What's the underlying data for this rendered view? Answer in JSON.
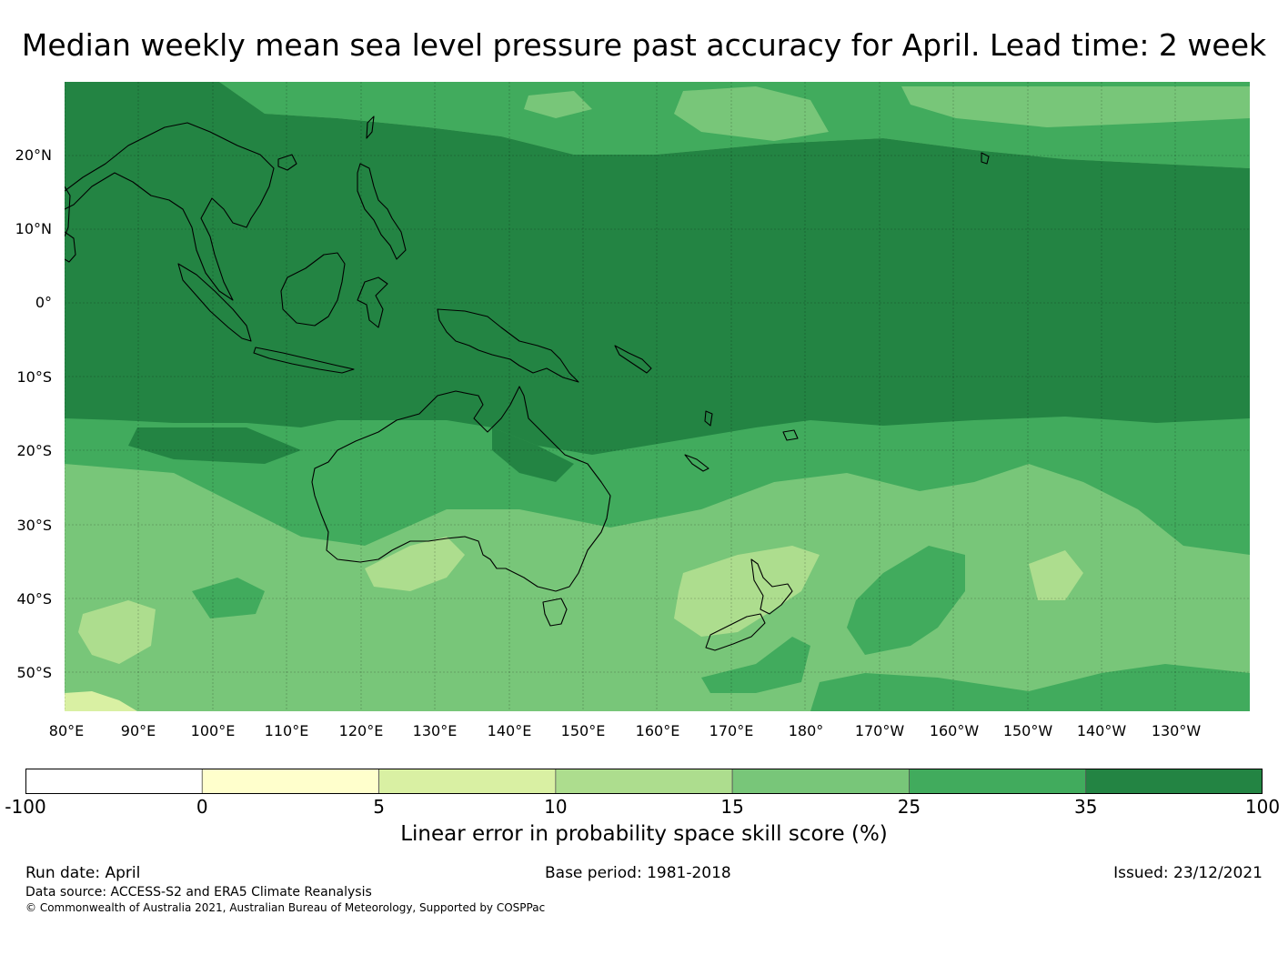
{
  "title": "Median weekly mean sea level pressure past accuracy for April. Lead time: 2 week",
  "map": {
    "lat_labels": [
      "20°N",
      "10°N",
      "0°",
      "10°S",
      "20°S",
      "30°S",
      "40°S",
      "50°S"
    ],
    "lon_labels": [
      "80°E",
      "90°E",
      "100°E",
      "110°E",
      "120°E",
      "130°E",
      "140°E",
      "150°E",
      "160°E",
      "170°E",
      "180°",
      "170°W",
      "160°W",
      "150°W",
      "140°W",
      "130°W"
    ],
    "skill_zones": [
      {
        "region": "tropical band 15°N to 15°S",
        "class": "35-100"
      },
      {
        "region": "subtropics and northern margin",
        "class": "25-35"
      },
      {
        "region": "southern mid-latitudes",
        "class": "15-25"
      },
      {
        "region": "Tasman Sea / South Island of New Zealand",
        "class": "10-15"
      },
      {
        "region": "southern Australia and Great Australian Bight",
        "class": "10-15"
      }
    ],
    "coastlines": [
      "Australia",
      "New Zealand",
      "Indonesia",
      "Papua New Guinea",
      "Philippines",
      "Southeast Asia",
      "Pacific islands"
    ]
  },
  "colorbar": {
    "classes": [
      {
        "from": -100,
        "to": 0,
        "color": "#ffffff"
      },
      {
        "from": 0,
        "to": 5,
        "color": "#ffffcc"
      },
      {
        "from": 5,
        "to": 10,
        "color": "#d9f0a3"
      },
      {
        "from": 10,
        "to": 15,
        "color": "#addd8e"
      },
      {
        "from": 15,
        "to": 25,
        "color": "#78c679"
      },
      {
        "from": 25,
        "to": 35,
        "color": "#41ab5d"
      },
      {
        "from": 35,
        "to": 100,
        "color": "#238443"
      }
    ],
    "ticks": [
      "-100",
      "0",
      "5",
      "10",
      "15",
      "25",
      "35",
      "100"
    ],
    "label": "Linear error in probability space skill score (%)"
  },
  "footer": {
    "run_date": "Run date: April",
    "base_period": "Base period: 1981-2018",
    "issued": "Issued: 23/12/2021",
    "data_source": "Data source: ACCESS-S2 and ERA5 Climate Reanalysis",
    "copyright": "© Commonwealth of Australia 2021, Australian Bureau of Meteorology, Supported by COSPPac"
  }
}
